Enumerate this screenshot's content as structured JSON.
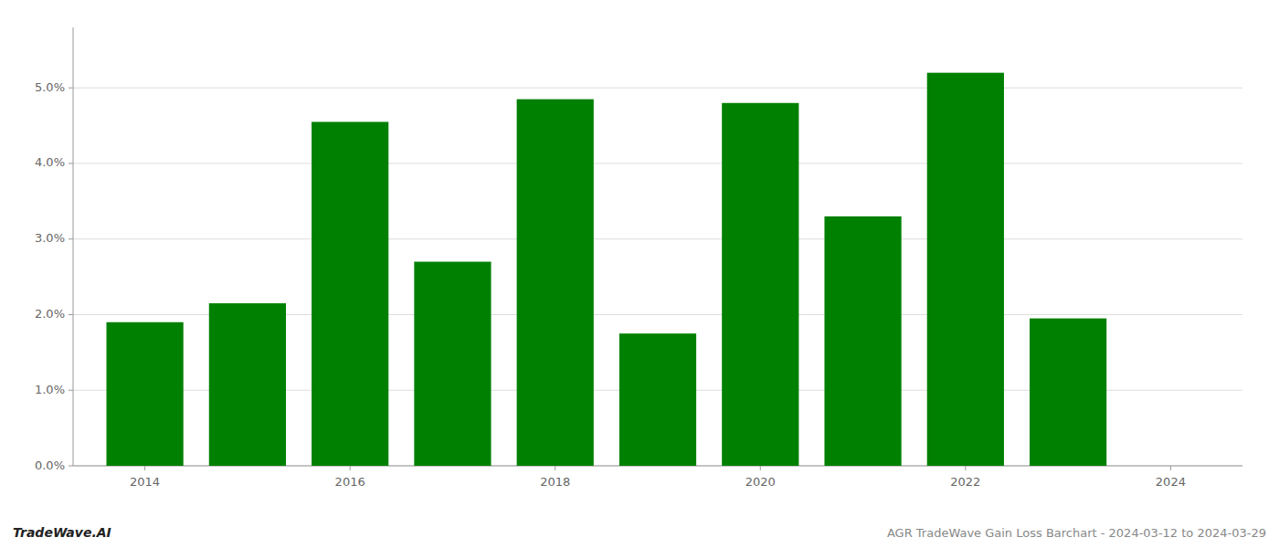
{
  "chart_data": {
    "type": "bar",
    "x": [
      2014,
      2015,
      2016,
      2017,
      2018,
      2019,
      2020,
      2021,
      2022,
      2023
    ],
    "values": [
      0.019,
      0.0215,
      0.0455,
      0.027,
      0.0485,
      0.0175,
      0.048,
      0.033,
      0.052,
      0.0195
    ],
    "color": "#008000",
    "xlim": [
      2013.3,
      2024.7
    ],
    "xticks": [
      2014,
      2016,
      2018,
      2020,
      2022,
      2024
    ],
    "ylim": [
      0,
      0.058
    ],
    "yticks": [
      {
        "value": 0.0,
        "label": "0.0%"
      },
      {
        "value": 0.01,
        "label": "1.0%"
      },
      {
        "value": 0.02,
        "label": "2.0%"
      },
      {
        "value": 0.03,
        "label": "3.0%"
      },
      {
        "value": 0.04,
        "label": "4.0%"
      },
      {
        "value": 0.05,
        "label": "5.0%"
      }
    ],
    "grid": true,
    "annotations": [
      "TradeWave.AI",
      "AGR TradeWave Gain Loss Barchart - 2024-03-12 to 2024-03-29"
    ]
  }
}
